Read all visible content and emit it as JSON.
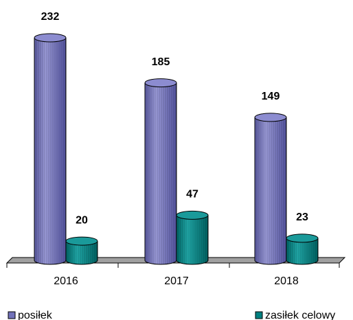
{
  "chart_data": {
    "type": "bar",
    "categories": [
      "2016",
      "2017",
      "2018"
    ],
    "series": [
      {
        "name": "posiłek",
        "color": "#7171b9",
        "values": [
          232,
          185,
          149
        ]
      },
      {
        "name": "zasiłek celowy",
        "color": "#008080",
        "values": [
          20,
          47,
          23
        ]
      }
    ]
  }
}
